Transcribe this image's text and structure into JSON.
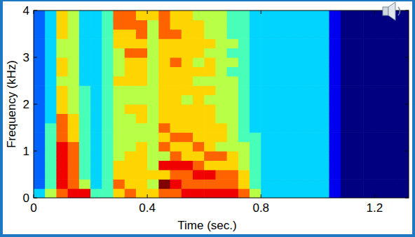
{
  "chart_data": {
    "type": "heatmap",
    "x_label": "Time (sec.)",
    "y_label": "Frequency (kHz)",
    "xlim": [
      0,
      1.32
    ],
    "ylim": [
      0,
      4
    ],
    "xticks": [
      0,
      0.4,
      0.8,
      1.2
    ],
    "yticks": [
      0,
      1,
      2,
      3,
      4
    ],
    "zlim": [
      0,
      9
    ],
    "x_edges": [
      0,
      0.04,
      0.08,
      0.12,
      0.16,
      0.2,
      0.24,
      0.28,
      0.32,
      0.36,
      0.4,
      0.44,
      0.48,
      0.52,
      0.56,
      0.6,
      0.64,
      0.68,
      0.72,
      0.76,
      0.8,
      0.84,
      0.88,
      0.92,
      0.96,
      1.0,
      1.04,
      1.08,
      1.12,
      1.16,
      1.2,
      1.24,
      1.28,
      1.32
    ],
    "y_edges": [
      0,
      0.2,
      0.4,
      0.6,
      0.8,
      1.0,
      1.2,
      1.4,
      1.6,
      1.8,
      2.0,
      2.2,
      2.4,
      2.6,
      2.8,
      3.0,
      3.2,
      3.4,
      3.6,
      3.8,
      4.0
    ],
    "cells": [
      [
        3,
        2,
        2,
        2,
        2,
        2,
        2,
        2,
        2,
        2,
        2,
        2,
        2,
        2,
        2,
        2,
        2,
        2,
        2,
        2
      ],
      [
        5,
        4,
        4,
        4,
        4,
        4,
        4,
        4,
        3,
        3,
        3,
        3,
        3,
        3,
        3,
        3,
        3,
        3,
        3,
        3
      ],
      [
        7,
        8,
        8,
        8,
        8,
        8,
        7,
        7,
        7,
        6,
        6,
        6,
        5,
        6,
        6,
        5,
        5,
        6,
        6,
        6
      ],
      [
        8,
        7,
        7,
        7,
        7,
        7,
        6,
        6,
        6,
        5,
        5,
        5,
        5,
        5,
        5,
        5,
        5,
        5,
        5,
        5
      ],
      [
        8,
        5,
        4,
        4,
        4,
        4,
        4,
        4,
        4,
        4,
        4,
        4,
        3,
        3,
        3,
        3,
        3,
        3,
        3,
        3
      ],
      [
        4,
        3,
        3,
        3,
        3,
        3,
        3,
        3,
        3,
        3,
        3,
        3,
        3,
        3,
        3,
        3,
        3,
        3,
        3,
        3
      ],
      [
        4,
        4,
        4,
        4,
        4,
        4,
        4,
        4,
        4,
        4,
        4,
        4,
        4,
        4,
        4,
        4,
        4,
        4,
        4,
        4
      ],
      [
        6,
        7,
        6,
        6,
        5,
        5,
        5,
        5,
        5,
        5,
        5,
        5,
        6,
        5,
        5,
        5,
        6,
        6,
        7,
        7
      ],
      [
        7,
        6,
        6,
        6,
        6,
        5,
        5,
        5,
        5,
        6,
        5,
        5,
        6,
        6,
        6,
        7,
        6,
        6,
        7,
        7
      ],
      [
        6,
        6,
        6,
        6,
        6,
        6,
        5,
        5,
        6,
        6,
        5,
        5,
        6,
        6,
        6,
        7,
        6,
        7,
        7,
        6
      ],
      [
        6,
        5,
        6,
        5,
        5,
        5,
        5,
        5,
        5,
        5,
        5,
        5,
        5,
        5,
        5,
        5,
        5,
        5,
        5,
        6
      ],
      [
        7,
        9,
        6,
        8,
        5,
        7,
        6,
        7,
        6,
        6,
        6,
        6,
        6,
        6,
        6,
        6,
        6,
        7,
        7,
        7
      ],
      [
        7,
        8,
        7,
        8,
        7,
        6,
        7,
        6,
        6,
        6,
        6,
        6,
        6,
        6,
        7,
        6,
        6,
        7,
        6,
        6
      ],
      [
        8,
        7,
        7,
        8,
        6,
        6,
        7,
        6,
        6,
        6,
        5,
        6,
        6,
        6,
        6,
        6,
        6,
        6,
        6,
        6
      ],
      [
        8,
        7,
        8,
        7,
        6,
        7,
        6,
        6,
        6,
        6,
        6,
        6,
        5,
        6,
        5,
        6,
        6,
        6,
        6,
        5
      ],
      [
        8,
        7,
        8,
        6,
        7,
        6,
        6,
        6,
        6,
        6,
        5,
        6,
        5,
        6,
        6,
        5,
        6,
        5,
        5,
        5
      ],
      [
        8,
        7,
        7,
        6,
        7,
        5,
        6,
        6,
        5,
        5,
        5,
        5,
        5,
        5,
        5,
        5,
        5,
        5,
        5,
        5
      ],
      [
        8,
        7,
        7,
        6,
        6,
        5,
        5,
        5,
        5,
        5,
        5,
        5,
        5,
        4,
        5,
        4,
        5,
        4,
        4,
        4
      ],
      [
        7,
        6,
        6,
        5,
        5,
        5,
        4,
        4,
        4,
        4,
        4,
        4,
        4,
        4,
        4,
        4,
        4,
        4,
        4,
        4
      ],
      [
        5,
        4,
        4,
        4,
        4,
        4,
        4,
        3,
        3,
        3,
        3,
        3,
        3,
        3,
        3,
        3,
        3,
        3,
        3,
        3
      ],
      [
        3,
        3,
        3,
        3,
        3,
        3,
        3,
        3,
        3,
        3,
        3,
        3,
        3,
        3,
        3,
        3,
        3,
        3,
        3,
        3
      ],
      [
        3,
        3,
        3,
        3,
        3,
        3,
        3,
        3,
        3,
        3,
        3,
        3,
        3,
        3,
        3,
        3,
        3,
        3,
        3,
        3
      ],
      [
        3,
        3,
        3,
        3,
        3,
        3,
        3,
        3,
        3,
        3,
        3,
        3,
        3,
        3,
        3,
        3,
        3,
        3,
        3,
        3
      ],
      [
        3,
        3,
        3,
        3,
        3,
        3,
        3,
        3,
        3,
        3,
        3,
        3,
        3,
        3,
        3,
        3,
        3,
        3,
        3,
        3
      ],
      [
        3,
        3,
        3,
        3,
        3,
        3,
        3,
        3,
        3,
        3,
        3,
        3,
        3,
        3,
        3,
        3,
        3,
        3,
        3,
        3
      ],
      [
        3,
        3,
        3,
        3,
        3,
        3,
        3,
        3,
        3,
        3,
        3,
        3,
        3,
        3,
        3,
        3,
        3,
        3,
        3,
        3
      ],
      [
        1,
        1,
        1,
        1,
        1,
        1,
        1,
        1,
        1,
        1,
        1,
        1,
        1,
        1,
        1,
        1,
        1,
        1,
        1,
        1
      ],
      [
        0,
        0,
        0,
        0,
        0,
        0,
        0,
        0,
        0,
        0,
        0,
        0,
        0,
        0,
        0,
        0,
        0,
        0,
        0,
        0
      ],
      [
        0,
        0,
        0,
        0,
        0,
        0,
        0,
        0,
        0,
        0,
        0,
        0,
        0,
        0,
        0,
        0,
        0,
        0,
        0,
        0
      ],
      [
        0,
        0,
        0,
        0,
        0,
        0,
        0,
        0,
        0,
        0,
        0,
        0,
        0,
        0,
        0,
        0,
        0,
        0,
        0,
        0
      ],
      [
        0,
        0,
        0,
        0,
        0,
        0,
        0,
        0,
        0,
        0,
        0,
        0,
        0,
        0,
        0,
        0,
        0,
        0,
        0,
        0
      ],
      [
        0,
        0,
        0,
        0,
        0,
        0,
        0,
        0,
        0,
        0,
        0,
        0,
        0,
        0,
        0,
        0,
        0,
        0,
        0,
        0
      ],
      [
        0,
        0,
        0,
        0,
        0,
        0,
        0,
        0,
        0,
        0,
        0,
        0,
        0,
        0,
        0,
        0,
        0,
        0,
        0,
        0
      ]
    ]
  }
}
